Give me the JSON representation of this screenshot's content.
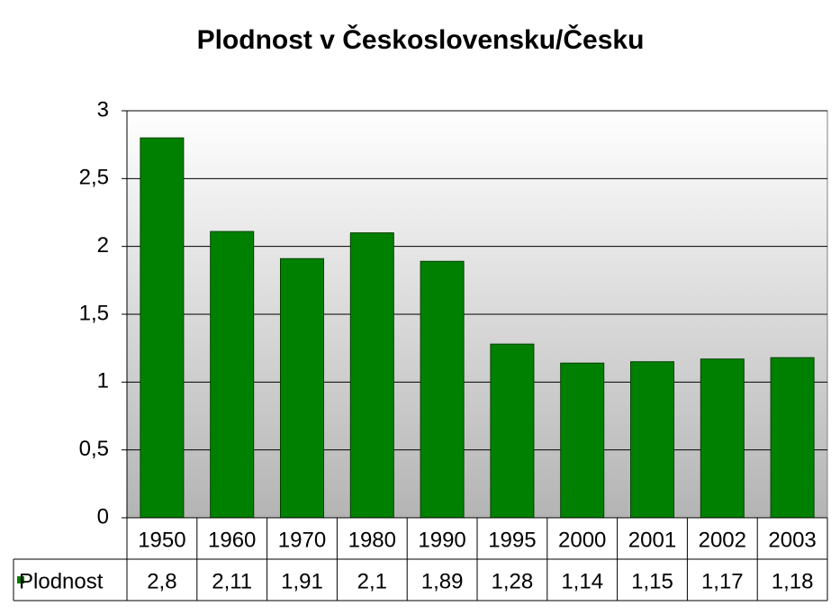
{
  "chart_data": {
    "type": "bar",
    "title": "Plodnost v Československu/Česku",
    "categories": [
      "1950",
      "1960",
      "1970",
      "1980",
      "1990",
      "1995",
      "2000",
      "2001",
      "2002",
      "2003"
    ],
    "series": [
      {
        "name": "Plodnost",
        "color": "#008000",
        "values": [
          2.8,
          2.11,
          1.91,
          2.1,
          1.89,
          1.28,
          1.14,
          1.15,
          1.17,
          1.18
        ],
        "value_labels": [
          "2,8",
          "2,11",
          "1,91",
          "2,1",
          "1,89",
          "1,28",
          "1,14",
          "1,15",
          "1,17",
          "1,18"
        ]
      }
    ],
    "ylim": [
      0,
      3
    ],
    "yticks": [
      0,
      {
        "value": 0.5,
        "label": "0,5"
      },
      1,
      {
        "value": 1.5,
        "label": "1,5"
      },
      2,
      {
        "value": 2.5,
        "label": "2,5"
      },
      3
    ],
    "grid": true
  }
}
